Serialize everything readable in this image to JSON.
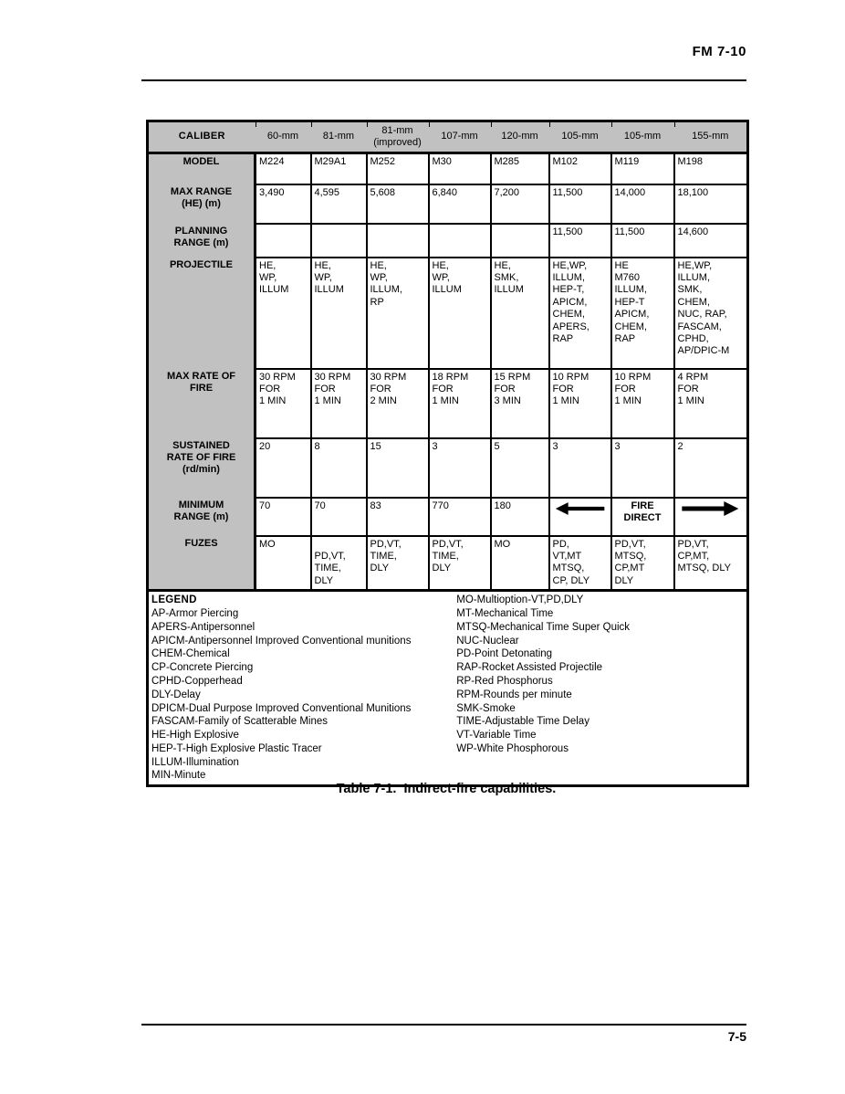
{
  "page": {
    "doc_ref": "FM 7-10",
    "caption": "Table 7-1.  Indirect-fire capabilities.",
    "page_number": "7-5"
  },
  "colors": {
    "table_header_gray": "#c1c1c1",
    "border_black": "#000000"
  },
  "table": {
    "header": {
      "label": "CALIBER",
      "columns": [
        "60-mm",
        "81-mm",
        "81-mm\n(improved)",
        "107-mm",
        "120-mm",
        "105-mm",
        "105-mm",
        "155-mm"
      ]
    },
    "rows": [
      {
        "label": "MODEL",
        "cells": [
          "M224",
          "M29A1",
          "M252",
          "M30",
          "M285",
          "M102",
          "M119",
          "M198"
        ]
      },
      {
        "label": "MAX RANGE\n(HE) (m)",
        "cells": [
          "3,490",
          "4,595",
          "5,608",
          "6,840",
          "7,200",
          "11,500",
          "14,000",
          "18,100"
        ]
      },
      {
        "label": "PLANNING\nRANGE (m)",
        "cells": [
          "",
          "",
          "",
          "",
          "",
          "11,500",
          "11,500",
          "14,600"
        ]
      },
      {
        "label": "PROJECTILE",
        "cells": [
          "HE,\nWP,\nILLUM",
          "HE,\nWP,\nILLUM",
          "HE,\nWP,\nILLUM,\nRP",
          "HE,\nWP,\nILLUM",
          "HE,\nSMK,\nILLUM",
          "HE,WP,\nILLUM,\nHEP-T,\nAPICM,\nCHEM,\nAPERS,\nRAP",
          "HE\nM760\nILLUM,\nHEP-T\nAPICM,\nCHEM,\nRAP",
          "HE,WP,\nILLUM,\nSMK,\nCHEM,\nNUC, RAP,\nFASCAM,\nCPHD,\nAP/DPIC-M"
        ]
      },
      {
        "label": "MAX RATE OF\nFIRE",
        "cells": [
          "30 RPM\nFOR\n1 MIN",
          "30 RPM\nFOR\n1 MIN",
          "30 RPM\nFOR\n2 MIN",
          "18 RPM\nFOR\n1 MIN",
          "15 RPM\nFOR\n3 MIN",
          "10 RPM\nFOR\n1 MIN",
          "10 RPM\nFOR\n1 MIN",
          "4 RPM\nFOR\n1 MIN"
        ]
      },
      {
        "label": "SUSTAINED\nRATE OF FIRE\n(rd/min)",
        "cells": [
          "20",
          "8",
          "15",
          "3",
          "5",
          "3",
          "3",
          "2"
        ]
      },
      {
        "label": "MINIMUM\nRANGE (m)",
        "cells": [
          "70",
          "70",
          "83",
          "770",
          "180",
          {
            "icon": "direct-fire-arrow-left"
          },
          {
            "text": "FIRE\nDIRECT"
          },
          {
            "icon": "direct-fire-arrow-right"
          }
        ]
      },
      {
        "label": "FUZES",
        "cells": [
          "MO",
          "\nPD,VT,\nTIME,\nDLY",
          "PD,VT,\nTIME,\nDLY",
          "PD,VT,\nTIME,\nDLY",
          "MO",
          "PD,\nVT,MT\nMTSQ,\nCP, DLY",
          "PD,VT,\nMTSQ,\nCP,MT\nDLY",
          "PD,VT,\nCP,MT,\nMTSQ, DLY"
        ]
      }
    ],
    "legend": {
      "title": "LEGEND",
      "left": [
        "AP-Armor Piercing",
        "APERS-Antipersonnel",
        "APICM-Antipersonnel Improved Conventional munitions",
        "CHEM-Chemical",
        "CP-Concrete Piercing",
        "CPHD-Copperhead",
        "DLY-Delay",
        "DPICM-Dual Purpose Improved Conventional Munitions",
        "FASCAM-Family of Scatterable Mines",
        "HE-High Explosive",
        "HEP-T-High Explosive Plastic Tracer",
        "ILLUM-Illumination",
        "MIN-Minute"
      ],
      "right": [
        "MO-Multioption-VT,PD,DLY",
        "MT-Mechanical Time",
        "MTSQ-Mechanical Time Super Quick",
        "NUC-Nuclear",
        "PD-Point Detonating",
        "RAP-Rocket Assisted Projectile",
        "RP-Red Phosphorus",
        "RPM-Rounds per minute",
        "SMK-Smoke",
        "TIME-Adjustable Time Delay",
        "VT-Variable Time",
        "WP-White Phosphorous"
      ]
    }
  }
}
